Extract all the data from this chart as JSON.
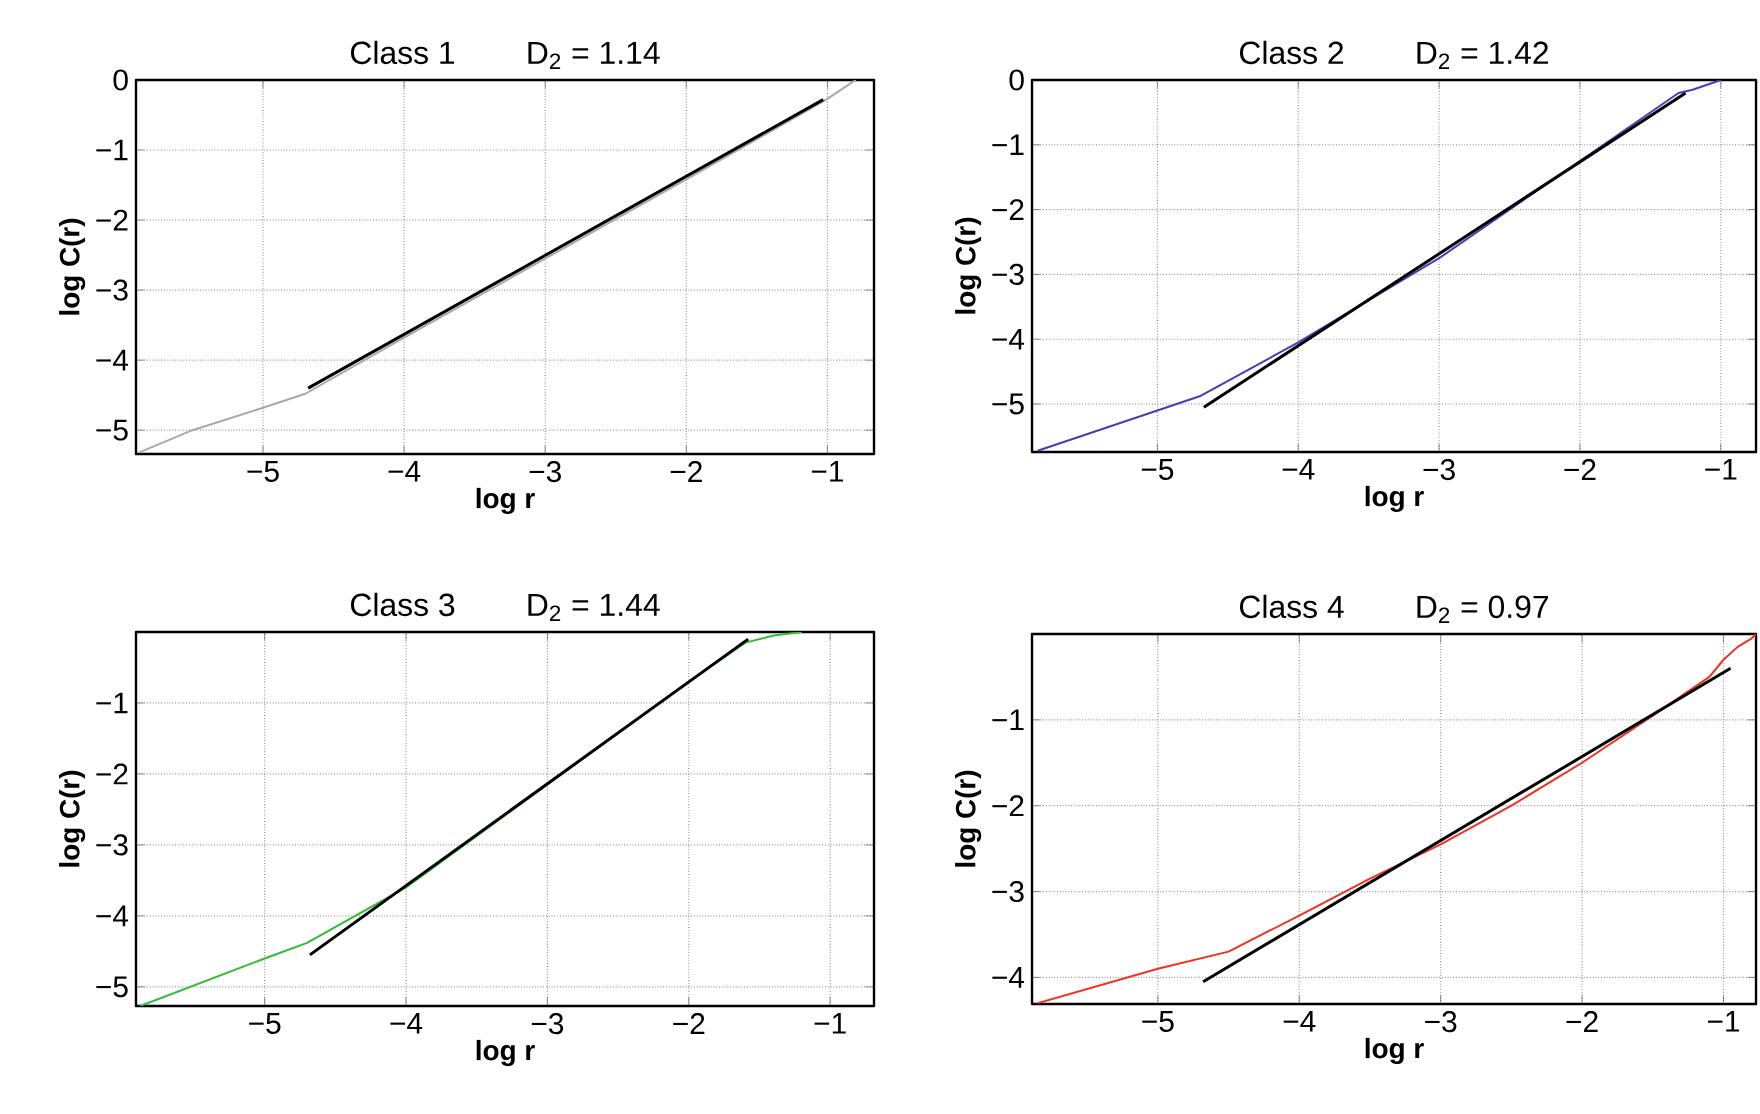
{
  "chart_data": [
    {
      "type": "line",
      "title": "Class 1",
      "subtitle": "D$_{2}$ = 1.14",
      "xlabel": "log r",
      "ylabel": "log C(r)",
      "xlim": [
        -5.9,
        -0.67
      ],
      "ylim": [
        -5.34,
        0
      ],
      "grid": true,
      "line_style": "solid",
      "marker": "none",
      "xticks": [
        {
          "value": -5,
          "label": "−5"
        },
        {
          "value": -4,
          "label": "−4"
        },
        {
          "value": -3,
          "label": "−3"
        },
        {
          "value": -2,
          "label": "−2"
        },
        {
          "value": -1,
          "label": "−1"
        }
      ],
      "yticks": [
        {
          "value": -5,
          "label": "−5"
        },
        {
          "value": -4,
          "label": "−4"
        },
        {
          "value": -3,
          "label": "−3"
        },
        {
          "value": -2,
          "label": "−2"
        },
        {
          "value": -1,
          "label": "−1"
        },
        0
      ],
      "series": [
        {
          "color": "#a8a8a8",
          "x": [
            -5.88,
            -5.5,
            -5.0,
            -4.7,
            -4.0,
            -3.0,
            -2.0,
            -1.0,
            -0.8
          ],
          "values": [
            -5.32,
            -5.0,
            -4.68,
            -4.48,
            -3.68,
            -2.55,
            -1.42,
            -0.27,
            0.0
          ]
        },
        {
          "type": "line",
          "color": "#000000",
          "x": [
            -4.68,
            -1.03
          ],
          "values": [
            -4.4,
            -0.28
          ]
        }
      ]
    },
    {
      "type": "line",
      "title": "Class 2",
      "subtitle": "D$_{2}$ = 1.42",
      "xlabel": "log r",
      "ylabel": "log C(r)",
      "xlim": [
        -5.89,
        -0.75
      ],
      "ylim": [
        -5.74,
        0
      ],
      "grid": true,
      "line_style": "solid",
      "marker": "none",
      "xticks": [
        {
          "value": -5,
          "label": "−5"
        },
        {
          "value": -4,
          "label": "−4"
        },
        {
          "value": -3,
          "label": "−3"
        },
        {
          "value": -2,
          "label": "−2"
        },
        {
          "value": -1,
          "label": "−1"
        }
      ],
      "yticks": [
        {
          "value": -5,
          "label": "−5"
        },
        {
          "value": -4,
          "label": "−4"
        },
        {
          "value": -3,
          "label": "−3"
        },
        {
          "value": -2,
          "label": "−2"
        },
        {
          "value": -1,
          "label": "−1"
        },
        0
      ],
      "series": [
        {
          "color": "#4040b8",
          "x": [
            -5.85,
            -5.0,
            -4.7,
            -4.0,
            -3.0,
            -2.0,
            -1.3,
            -1.2,
            -1.0
          ],
          "values": [
            -5.72,
            -5.1,
            -4.88,
            -4.05,
            -2.75,
            -1.25,
            -0.2,
            -0.15,
            0.0
          ]
        },
        {
          "type": "line",
          "color": "#000000",
          "x": [
            -4.67,
            -1.25
          ],
          "values": [
            -5.05,
            -0.2
          ]
        }
      ]
    },
    {
      "type": "line",
      "title": "Class 3",
      "subtitle": "D$_{2}$ = 1.44",
      "xlabel": "log r",
      "ylabel": "log C(r)",
      "xlim": [
        -5.91,
        -0.69
      ],
      "ylim": [
        -5.27,
        0
      ],
      "grid": true,
      "line_style": "solid",
      "marker": "none",
      "xticks": [
        {
          "value": -5,
          "label": "−5"
        },
        {
          "value": -4,
          "label": "−4"
        },
        {
          "value": -3,
          "label": "−3"
        },
        {
          "value": -2,
          "label": "−2"
        },
        {
          "value": -1,
          "label": "−1"
        }
      ],
      "yticks": [
        {
          "value": -5,
          "label": "−5"
        },
        {
          "value": -4,
          "label": "−4"
        },
        {
          "value": -3,
          "label": "−3"
        },
        {
          "value": -2,
          "label": "−2"
        },
        {
          "value": -1,
          "label": "−1"
        }
      ],
      "series": [
        {
          "color": "#33bb33",
          "x": [
            -5.88,
            -5.0,
            -4.7,
            -4.0,
            -3.0,
            -2.0,
            -1.6,
            -1.4,
            -1.2
          ],
          "values": [
            -5.27,
            -4.6,
            -4.38,
            -3.6,
            -2.15,
            -0.7,
            -0.15,
            -0.05,
            0.0
          ]
        },
        {
          "type": "line",
          "color": "#000000",
          "x": [
            -4.68,
            -1.58
          ],
          "values": [
            -4.55,
            -0.1
          ]
        }
      ]
    },
    {
      "type": "line",
      "title": "Class 4",
      "subtitle": "D$_{2}$ = 0.97",
      "xlabel": "log r",
      "ylabel": "log C(r)",
      "xlim": [
        -5.89,
        -0.77
      ],
      "ylim": [
        -4.31,
        0
      ],
      "grid": true,
      "line_style": "solid",
      "marker": "none",
      "xticks": [
        {
          "value": -5,
          "label": "−5"
        },
        {
          "value": -4,
          "label": "−4"
        },
        {
          "value": -3,
          "label": "−3"
        },
        {
          "value": -2,
          "label": "−2"
        },
        {
          "value": -1,
          "label": "−1"
        }
      ],
      "yticks": [
        {
          "value": -4,
          "label": "−4"
        },
        {
          "value": -3,
          "label": "−3"
        },
        {
          "value": -2,
          "label": "−2"
        },
        {
          "value": -1,
          "label": "−1"
        }
      ],
      "series": [
        {
          "color": "#ee3322",
          "x": [
            -5.85,
            -5.0,
            -4.5,
            -4.0,
            -3.5,
            -3.0,
            -2.5,
            -2.0,
            -1.5,
            -1.1,
            -1.0,
            -0.9,
            -0.8,
            -0.77
          ],
          "values": [
            -4.3,
            -3.9,
            -3.7,
            -3.28,
            -2.85,
            -2.45,
            -2.0,
            -1.5,
            -0.95,
            -0.5,
            -0.3,
            -0.15,
            -0.05,
            0.0
          ]
        },
        {
          "type": "line",
          "color": "#000000",
          "x": [
            -4.68,
            -0.95
          ],
          "values": [
            -4.05,
            -0.4
          ]
        }
      ]
    }
  ]
}
